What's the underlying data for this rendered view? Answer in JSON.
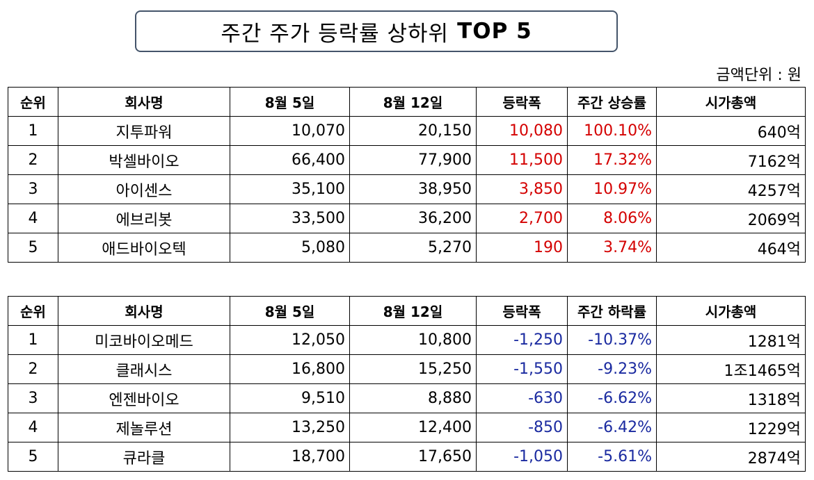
{
  "title": {
    "normal": "주간 주가 등락률 상하위",
    "bold": "TOP 5"
  },
  "unit_note": "금액단위 : 원",
  "colors": {
    "rise": "#d40000",
    "fall": "#1a2aa0",
    "title_border": "#44546a"
  },
  "rise_table": {
    "headers": [
      "순위",
      "회사명",
      "8월 5일",
      "8월 12일",
      "등락폭",
      "주간 상승률",
      "시가총액"
    ],
    "rows": [
      [
        "1",
        "지투파워",
        "10,070",
        "20,150",
        "10,080",
        "100.10%",
        "640억"
      ],
      [
        "2",
        "박셀바이오",
        "66,400",
        "77,900",
        "11,500",
        "17.32%",
        "7162억"
      ],
      [
        "3",
        "아이센스",
        "35,100",
        "38,950",
        "3,850",
        "10.97%",
        "4257억"
      ],
      [
        "4",
        "에브리봇",
        "33,500",
        "36,200",
        "2,700",
        "8.06%",
        "2069억"
      ],
      [
        "5",
        "애드바이오텍",
        "5,080",
        "5,270",
        "190",
        "3.74%",
        "464억"
      ]
    ]
  },
  "fall_table": {
    "headers": [
      "순위",
      "회사명",
      "8월 5일",
      "8월 12일",
      "등락폭",
      "주간 하락률",
      "시가총액"
    ],
    "rows": [
      [
        "1",
        "미코바이오메드",
        "12,050",
        "10,800",
        "-1,250",
        "-10.37%",
        "1281억"
      ],
      [
        "2",
        "클래시스",
        "16,800",
        "15,250",
        "-1,550",
        "-9.23%",
        "1조1465억"
      ],
      [
        "3",
        "엔젠바이오",
        "9,510",
        "8,880",
        "-630",
        "-6.62%",
        "1318억"
      ],
      [
        "4",
        "제놀루션",
        "13,250",
        "12,400",
        "-850",
        "-6.42%",
        "1229억"
      ],
      [
        "5",
        "큐라클",
        "18,700",
        "17,650",
        "-1,050",
        "-5.61%",
        "2874억"
      ]
    ]
  }
}
